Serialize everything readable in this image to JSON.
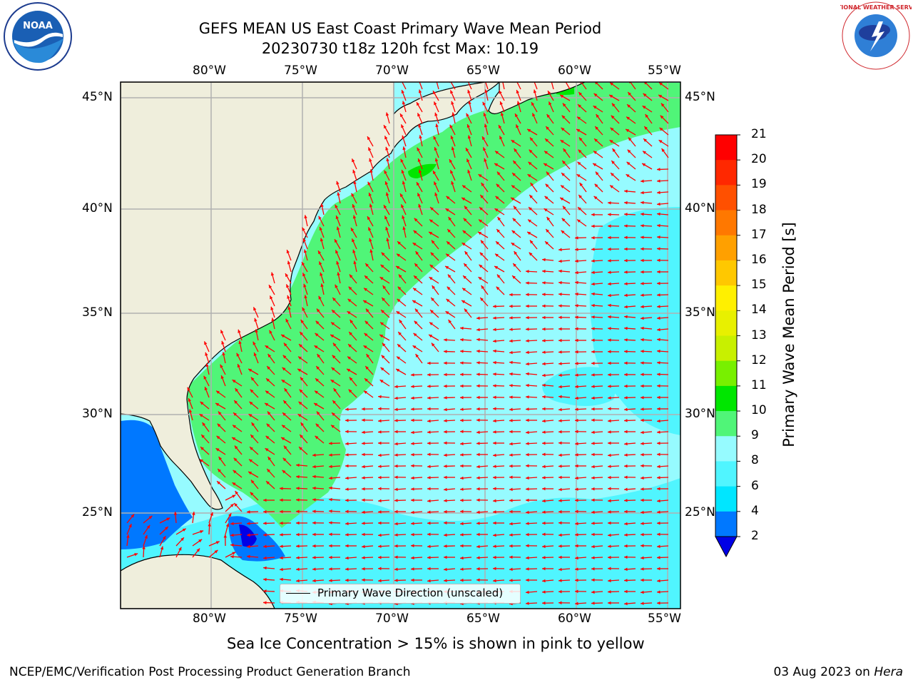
{
  "title": {
    "line1": "GEFS MEAN US East Coast Primary Wave Mean Period",
    "line2": "20230730 t18z 120h fcst   Max: 10.19"
  },
  "map": {
    "lat_labels": [
      "45°N",
      "40°N",
      "35°N",
      "30°N",
      "25°N"
    ],
    "lon_labels": [
      "80°W",
      "75°W",
      "70°W",
      "65°W",
      "60°W",
      "55°W"
    ],
    "legend_label": "Primary Wave Direction (unscaled)",
    "arrow_color": "#ff0000",
    "land_color": "#efeedc",
    "grid_color": "#b0b0b0"
  },
  "colorbar": {
    "label": "Primary Wave Mean Period [s]",
    "ticks": [
      "21",
      "20",
      "19",
      "18",
      "17",
      "16",
      "15",
      "14",
      "13",
      "12",
      "11",
      "10",
      "9",
      "8",
      "6",
      "4",
      "2"
    ],
    "colors": [
      "#ff0000",
      "#ff2800",
      "#ff5000",
      "#ff7800",
      "#ffa000",
      "#ffc800",
      "#fff000",
      "#e8f000",
      "#c8f000",
      "#78f000",
      "#00e600",
      "#50f578",
      "#96fbff",
      "#50f5ff",
      "#00e6ff",
      "#0078ff",
      "#0000e6"
    ]
  },
  "logos": {
    "noaa_text": "NOAA",
    "nws_text": "NATIONAL WEATHER SERVICE"
  },
  "ice_note": "Sea Ice Concentration > 15% is shown in pink to yellow",
  "footer": {
    "left": "NCEP/EMC/Verification Post Processing Product Generation Branch",
    "right_prefix": "03 Aug 2023 on ",
    "right_host": "Hera"
  }
}
